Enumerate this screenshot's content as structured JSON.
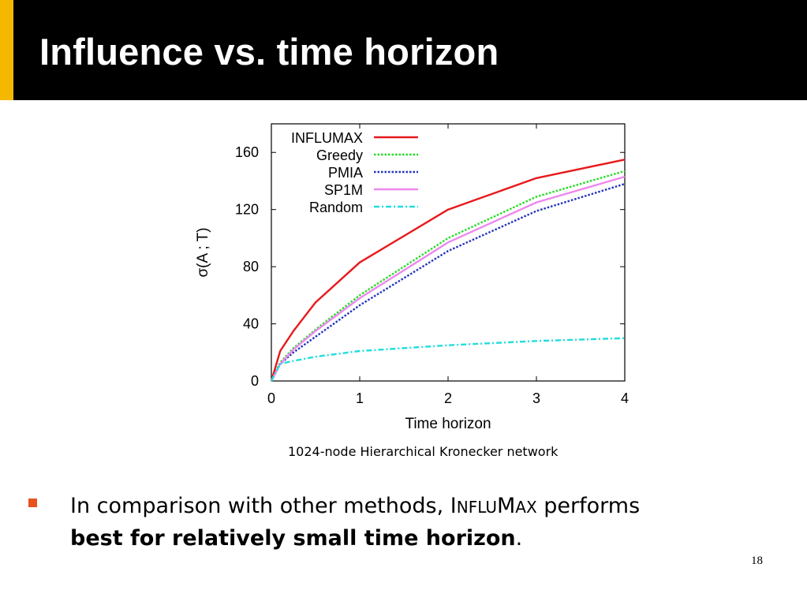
{
  "slide": {
    "title": "Influence vs. time horizon",
    "page_number": "18",
    "accent_color": "#f5b800",
    "bullet_color": "#e8531d"
  },
  "caption": "1024-node Hierarchical Kronecker network",
  "bullet": {
    "pre": "In comparison with other methods, ",
    "brand": [
      "I",
      "NFLU",
      "M",
      "AX"
    ],
    "post": " performs",
    "bold": "best for relatively small time horizon",
    "end": "."
  },
  "chart_data": {
    "type": "line",
    "xlabel": "Time horizon",
    "ylabel": "σ(A ; T)",
    "xlim": [
      0,
      4
    ],
    "ylim": [
      0,
      180
    ],
    "xticks": [
      0,
      1,
      2,
      3,
      4
    ],
    "yticks": [
      0,
      40,
      80,
      120,
      160
    ],
    "legend_position": "top-left",
    "grid": false,
    "series": [
      {
        "name": "INFLUMAX",
        "color": "#e8191b",
        "dash": "solid",
        "x": [
          0,
          0.1,
          0.25,
          0.5,
          1,
          2,
          3,
          4
        ],
        "y": [
          0,
          21,
          35,
          55,
          83,
          120,
          142,
          155
        ]
      },
      {
        "name": "Greedy",
        "color": "#22dd22",
        "dash": "dotted",
        "x": [
          0,
          0.1,
          0.25,
          0.5,
          1,
          2,
          3,
          4
        ],
        "y": [
          0,
          13,
          23,
          36,
          60,
          100,
          129,
          147
        ]
      },
      {
        "name": "PMIA",
        "color": "#2233bb",
        "dash": "dotted",
        "x": [
          0,
          0.1,
          0.25,
          0.5,
          1,
          2,
          3,
          4
        ],
        "y": [
          0,
          12,
          20,
          31,
          53,
          91,
          119,
          138
        ]
      },
      {
        "name": "SP1M",
        "color": "#ee88ee",
        "dash": "solid",
        "x": [
          0,
          0.1,
          0.25,
          0.5,
          1,
          2,
          3,
          4
        ],
        "y": [
          0,
          12,
          22,
          35,
          58,
          97,
          125,
          143
        ]
      },
      {
        "name": "Random",
        "color": "#22dddd",
        "dash": "dashdot",
        "x": [
          0,
          0.1,
          0.25,
          0.5,
          1,
          2,
          3,
          4
        ],
        "y": [
          0,
          12,
          14,
          17,
          21,
          25,
          28,
          30
        ]
      }
    ]
  }
}
